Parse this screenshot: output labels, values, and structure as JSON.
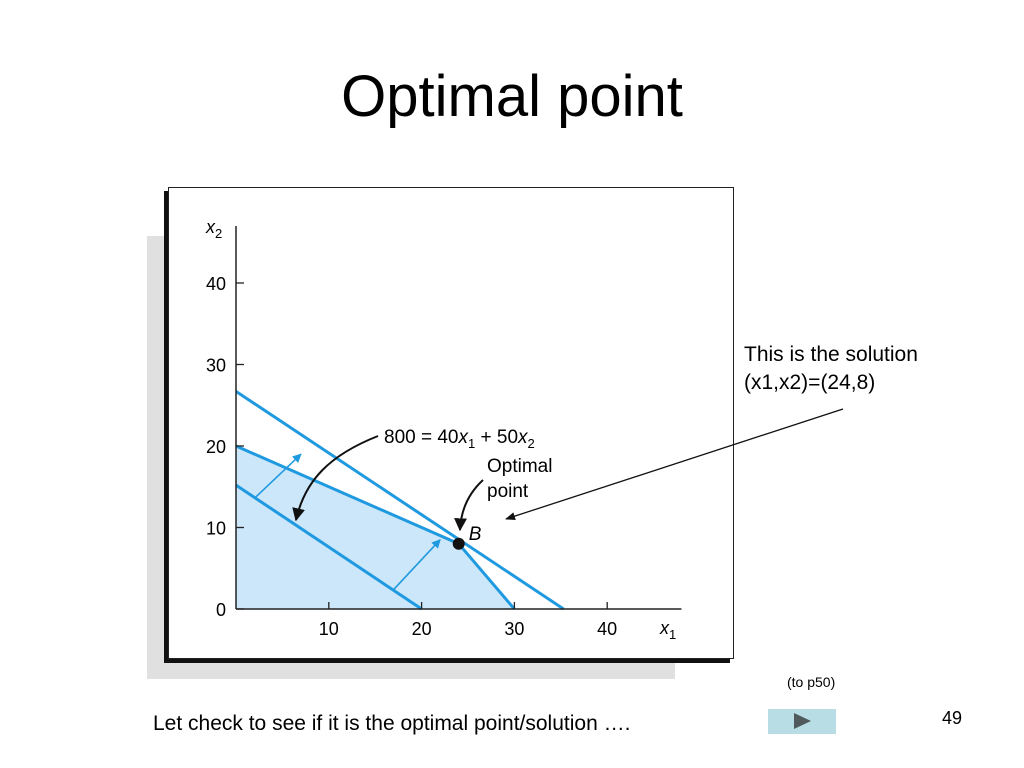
{
  "slide": {
    "title": "Optimal point",
    "annotation_line1": "This is the solution",
    "annotation_line2": "(x1,x2)=(24,8)",
    "ref_link": "(to p50)",
    "bottom_text": "Let check to see if it is the optimal point/solution  ….",
    "page_number": "49",
    "next_icon": "play-triangle-icon"
  },
  "chart_data": {
    "type": "line",
    "xlabel": "x",
    "xlabel_sub": "1",
    "ylabel": "x",
    "ylabel_sub": "2",
    "xlim": [
      0,
      48
    ],
    "ylim": [
      0,
      47
    ],
    "xticks": [
      10,
      20,
      30,
      40
    ],
    "yticks": [
      0,
      10,
      20,
      30,
      40
    ],
    "grid": false,
    "feasible_region": [
      [
        0,
        0
      ],
      [
        0,
        20
      ],
      [
        24,
        8
      ],
      [
        30,
        0
      ]
    ],
    "series": [
      {
        "points": [
          [
            0,
            26.7
          ],
          [
            35.3,
            0
          ]
        ]
      },
      {
        "points": [
          [
            0,
            20
          ],
          [
            24,
            8
          ]
        ]
      },
      {
        "points": [
          [
            24,
            8
          ],
          [
            30,
            0
          ]
        ]
      },
      {
        "points": [
          [
            0,
            15.2
          ],
          [
            20,
            0
          ]
        ]
      }
    ],
    "arrows": [
      {
        "from": [
          2,
          13.6
        ],
        "to": [
          7,
          19
        ]
      },
      {
        "from": [
          17,
          2.4
        ],
        "to": [
          22,
          8.5
        ]
      }
    ],
    "point": {
      "x": 24,
      "y": 8,
      "label": "B"
    },
    "labels": {
      "objective_lhs": "800 = 40",
      "objective_var1": "x",
      "objective_sub1": "1",
      "objective_mid": " + 50",
      "objective_var2": "x",
      "objective_sub2": "2",
      "optimal_line1": "Optimal",
      "optimal_line2": "point"
    },
    "colors": {
      "region": "#cce6fa",
      "line": "#1f9ae0",
      "axis": "#222222",
      "arrow": "#1f9ae0"
    }
  }
}
